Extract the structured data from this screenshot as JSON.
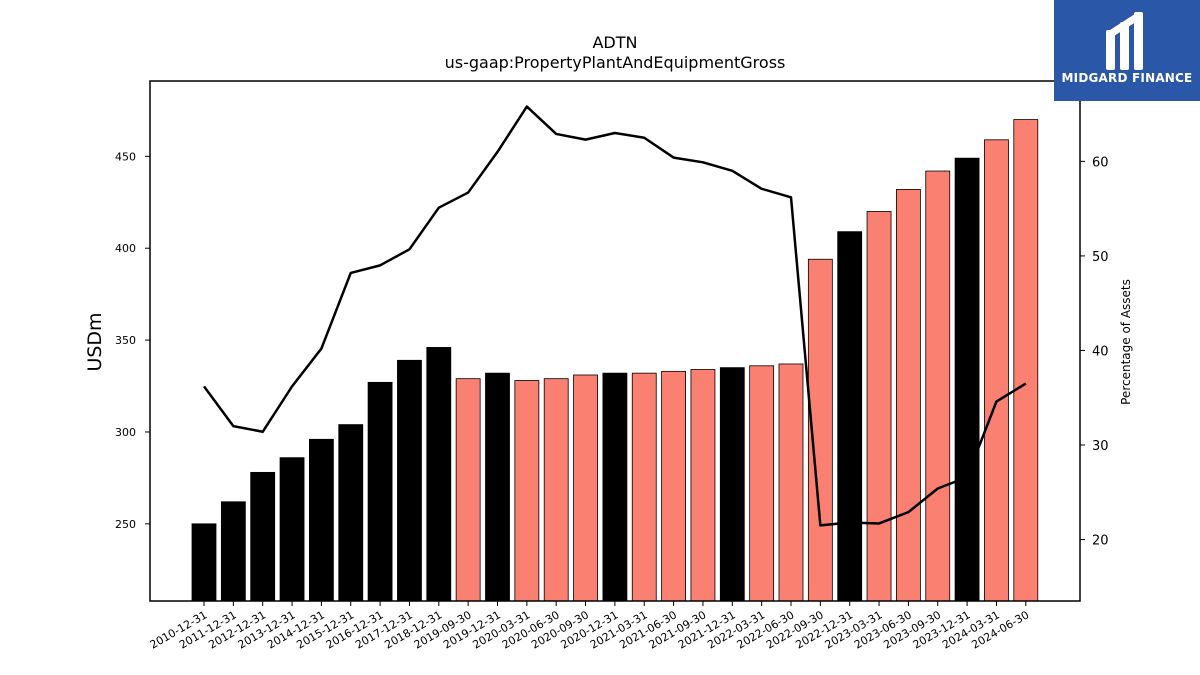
{
  "logo": {
    "text": "MIDGARD FINANCE",
    "background": "#2b57a8"
  },
  "chart_data": {
    "type": "bar",
    "title": "ADTN",
    "subtitle": "us-gaap:PropertyPlantAndEquipmentGross",
    "ylabel": "USDm",
    "y2label": "Percentage of Assets",
    "ylim": [
      208,
      491
    ],
    "y2lim": [
      13.5,
      68.5
    ],
    "yticks": [
      250,
      300,
      350,
      400,
      450
    ],
    "y2ticks": [
      20,
      30,
      40,
      50,
      60
    ],
    "grid": false,
    "colors": {
      "annual": "#000000",
      "quarterly": "#fa8072",
      "line": "#000000"
    },
    "categories": [
      "2010-12-31",
      "2011-12-31",
      "2012-12-31",
      "2013-12-31",
      "2014-12-31",
      "2015-12-31",
      "2016-12-31",
      "2017-12-31",
      "2018-12-31",
      "2019-09-30",
      "2019-12-31",
      "2020-03-31",
      "2020-06-30",
      "2020-09-30",
      "2020-12-31",
      "2021-03-31",
      "2021-06-30",
      "2021-09-30",
      "2021-12-31",
      "2022-03-31",
      "2022-06-30",
      "2022-09-30",
      "2022-12-31",
      "2023-03-31",
      "2023-06-30",
      "2023-09-30",
      "2023-12-31",
      "2024-03-31",
      "2024-06-30"
    ],
    "series": [
      {
        "values": [
          250,
          262,
          278,
          286,
          296,
          304,
          327,
          339,
          346,
          329,
          332,
          328,
          329,
          331,
          332,
          332,
          333,
          334,
          335,
          336,
          337,
          394,
          409,
          420,
          432,
          442,
          449,
          459,
          470
        ],
        "period": [
          "annual",
          "annual",
          "annual",
          "annual",
          "annual",
          "annual",
          "annual",
          "annual",
          "annual",
          "quarterly",
          "annual",
          "quarterly",
          "quarterly",
          "quarterly",
          "annual",
          "quarterly",
          "quarterly",
          "quarterly",
          "annual",
          "quarterly",
          "quarterly",
          "quarterly",
          "annual",
          "quarterly",
          "quarterly",
          "quarterly",
          "annual",
          "quarterly",
          "quarterly"
        ]
      },
      {
        "axis": "right",
        "type": "line",
        "values": [
          36.2,
          32.0,
          31.4,
          36.2,
          40.2,
          48.2,
          49.0,
          50.7,
          55.1,
          56.7,
          61.0,
          65.8,
          62.9,
          62.3,
          63.0,
          62.5,
          60.4,
          59.9,
          59.0,
          57.1,
          56.2,
          21.5,
          21.8,
          21.7,
          22.9,
          25.4,
          26.6,
          34.6,
          36.5
        ]
      }
    ]
  }
}
